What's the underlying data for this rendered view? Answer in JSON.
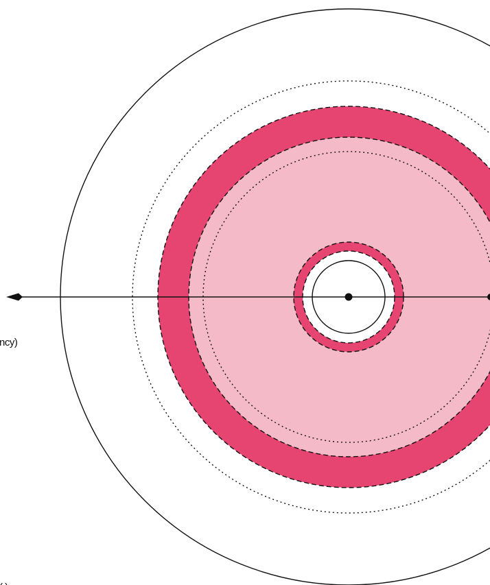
{
  "labels": {
    "axis_label_partial": "ncy)",
    "bottom_label_partial": "( )"
  },
  "colors": {
    "background": "#ffffff",
    "band_dark": "#E64571",
    "band_light": "#F5BAC8",
    "line": "#111111"
  },
  "icons": {
    "left_arrow": "arrowhead-left-icon",
    "center": "center-dot-icon",
    "right_point": "axis-end-dot-icon"
  }
}
